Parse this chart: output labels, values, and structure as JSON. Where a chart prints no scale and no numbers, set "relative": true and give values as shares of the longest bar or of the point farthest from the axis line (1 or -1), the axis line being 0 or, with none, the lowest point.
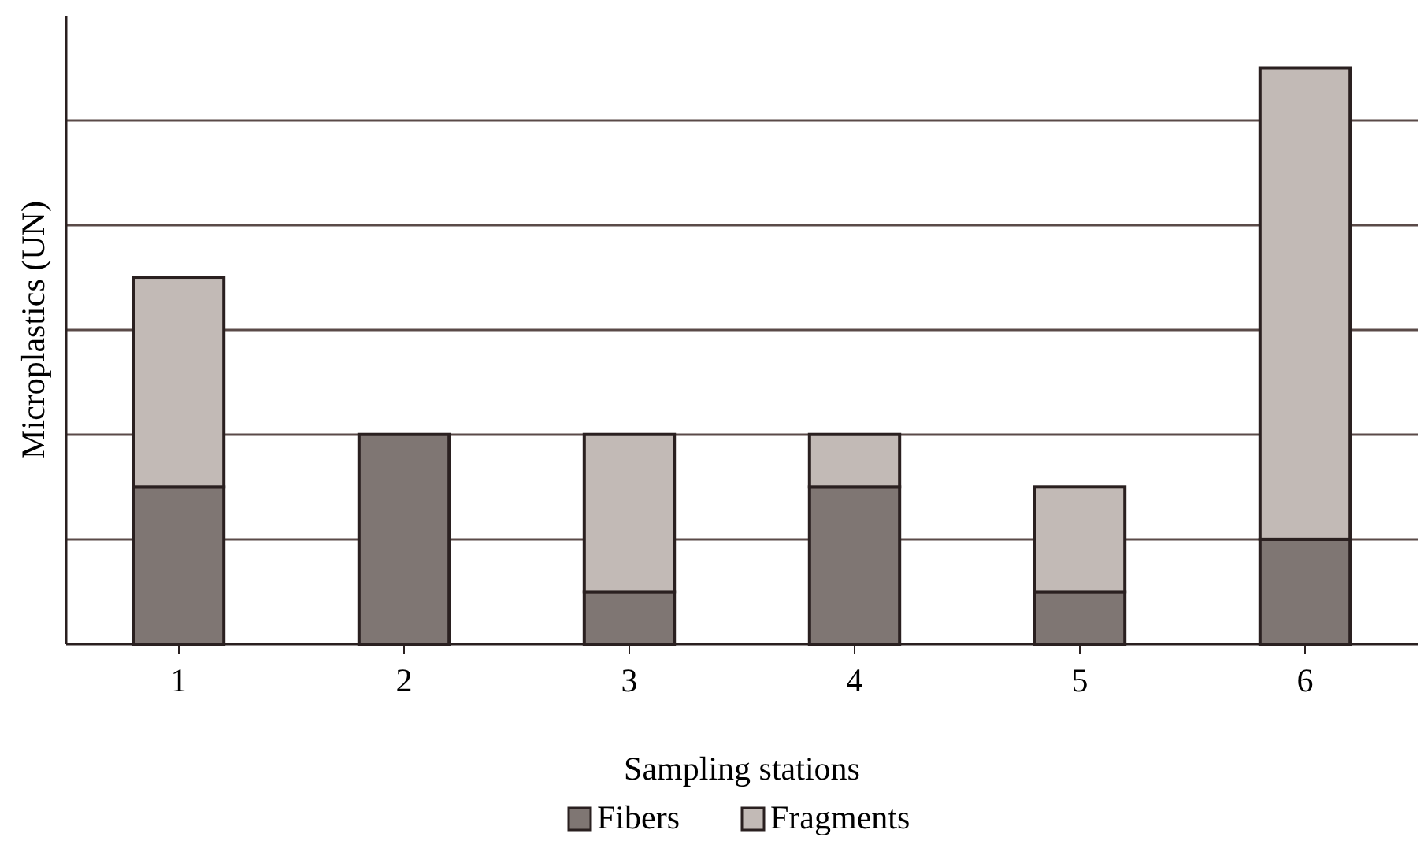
{
  "chart_data": {
    "type": "bar",
    "stacked": true,
    "relative": true,
    "xlabel": "Sampling stations",
    "ylabel": "Microplastics (UN)",
    "categories": [
      "1",
      "2",
      "3",
      "4",
      "5",
      "6"
    ],
    "series": [
      {
        "name": "Fibers",
        "color": "#7f7673",
        "values": [
          0.273,
          0.364,
          0.091,
          0.273,
          0.091,
          0.182
        ]
      },
      {
        "name": "Fragments",
        "color": "#c2bab6",
        "values": [
          0.364,
          0,
          0.273,
          0.091,
          0.182,
          0.818
        ]
      }
    ],
    "grid": "y",
    "legend": "bottom"
  }
}
